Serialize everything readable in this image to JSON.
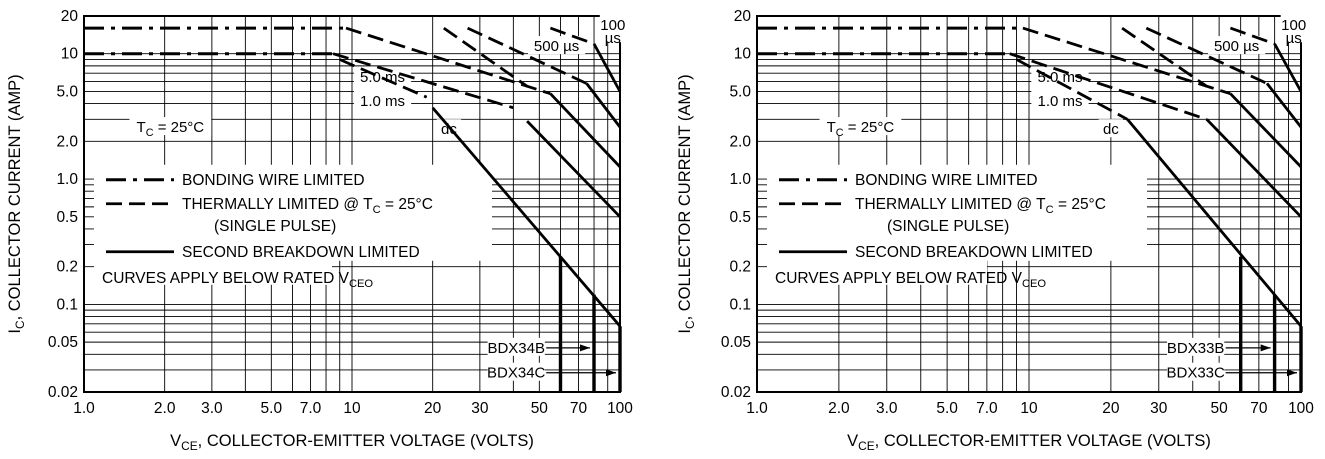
{
  "chart_data": [
    {
      "type": "line",
      "title": "",
      "xlabel": "VCE, COLLECTOR-EMITTER VOLTAGE (VOLTS)",
      "ylabel": "IC, COLLECTOR CURRENT (AMP)",
      "xscale": "log",
      "yscale": "log",
      "xlim": [
        1,
        100
      ],
      "ylim": [
        0.02,
        20
      ],
      "grid": true,
      "x_ticks": [
        1,
        2,
        3,
        5,
        7,
        10,
        20,
        30,
        50,
        70,
        100
      ],
      "x_tick_labels": [
        "1.0",
        "2.0",
        "3.0",
        "5.0",
        "7.0",
        "10",
        "20",
        "30",
        "50",
        "70",
        "100"
      ],
      "y_ticks": [
        0.02,
        0.05,
        0.1,
        0.2,
        0.5,
        1,
        2,
        5,
        10,
        20
      ],
      "y_tick_labels": [
        "0.02",
        "0.05",
        "0.1",
        "0.2",
        "0.5",
        "1.0",
        "2.0",
        "5.0",
        "10",
        "20"
      ],
      "series": [
        {
          "name": "BONDING WIRE LIMITED",
          "style": "dash-dot",
          "x": [
            1,
            9.5
          ],
          "y": [
            16,
            16
          ]
        },
        {
          "name": "BONDING WIRE LIMITED",
          "style": "dash-dot",
          "x": [
            1,
            8.5
          ],
          "y": [
            10,
            10
          ]
        },
        {
          "name": "THERMALLY LIMITED @ TC = 25°C",
          "style": "dash",
          "x": [
            9.5,
            55
          ],
          "y": [
            16,
            4.8
          ]
        },
        {
          "name": "THERMALLY LIMITED @ TC = 25°C",
          "style": "dash",
          "x": [
            22,
            45
          ],
          "y": [
            16,
            5.5
          ]
        },
        {
          "name": "THERMALLY LIMITED @ TC = 25°C",
          "style": "dash",
          "x": [
            8.5,
            40
          ],
          "y": [
            10,
            3.7
          ]
        },
        {
          "name": "THERMALLY LIMITED @ TC = 25°C",
          "style": "dash",
          "x": [
            9,
            19
          ],
          "y": [
            9,
            4.5
          ]
        },
        {
          "name": "THERMALLY LIMITED @ TC = 25°C",
          "style": "dash",
          "x": [
            27,
            75
          ],
          "y": [
            16,
            5.8
          ]
        },
        {
          "name": "THERMALLY LIMITED @ TC = 25°C",
          "style": "dash",
          "x": [
            55,
            80
          ],
          "y": [
            16,
            12
          ]
        },
        {
          "name": "SECOND BREAKDOWN LIMITED",
          "style": "solid",
          "x": [
            20,
            100
          ],
          "y": [
            3.7,
            0.067
          ]
        },
        {
          "name": "SECOND BREAKDOWN LIMITED",
          "style": "solid",
          "x": [
            45,
            100
          ],
          "y": [
            2.9,
            0.5
          ]
        },
        {
          "name": "SECOND BREAKDOWN LIMITED",
          "style": "solid",
          "x": [
            55,
            100
          ],
          "y": [
            4.8,
            1.25
          ]
        },
        {
          "name": "SECOND BREAKDOWN LIMITED",
          "style": "solid",
          "x": [
            75,
            100
          ],
          "y": [
            5.8,
            2.6
          ]
        },
        {
          "name": "SECOND BREAKDOWN LIMITED",
          "style": "solid",
          "x": [
            80,
            100
          ],
          "y": [
            12,
            5
          ]
        },
        {
          "name": "",
          "style": "solid-bold",
          "x": [
            60,
            60
          ],
          "y": [
            0.02,
            0.24
          ]
        },
        {
          "name": "",
          "style": "solid-bold",
          "x": [
            80,
            80
          ],
          "y": [
            0.02,
            0.12
          ]
        },
        {
          "name": "",
          "style": "solid-bold",
          "x": [
            100,
            100
          ],
          "y": [
            0.02,
            0.067
          ]
        }
      ],
      "annotations": [
        {
          "text": "100",
          "x": 94,
          "y": 17
        },
        {
          "text": "µs",
          "x": 94,
          "y": 13.3
        },
        {
          "text": "500 µs",
          "x": 58,
          "y": 11.5
        },
        {
          "text": "5.0 ms",
          "x": 13,
          "y": 6.5
        },
        {
          "text": "1.0 ms",
          "x": 13,
          "y": 4.2
        },
        {
          "text": "dc",
          "x": 23,
          "y": 2.5
        },
        {
          "text": "TC = 25°C",
          "x": 2.1,
          "y": 2.6
        },
        {
          "text": "BDX34B",
          "x": 41,
          "y": 0.045
        },
        {
          "text": "BDX34C",
          "x": 41,
          "y": 0.0285
        }
      ],
      "legend": {
        "placement": "bottom-left",
        "entries": [
          "BONDING WIRE LIMITED",
          "THERMALLY LIMITED @ TC = 25°C",
          "(SINGLE PULSE)",
          "SECOND BREAKDOWN LIMITED",
          "CURVES APPLY BELOW RATED VCEO"
        ]
      }
    },
    {
      "type": "line",
      "title": "",
      "xlabel": "VCE, COLLECTOR-EMITTER VOLTAGE (VOLTS)",
      "ylabel": "IC, COLLECTOR CURRENT (AMP)",
      "xscale": "log",
      "yscale": "log",
      "xlim": [
        1,
        100
      ],
      "ylim": [
        0.02,
        20
      ],
      "grid": true,
      "x_ticks": [
        1,
        2,
        3,
        5,
        7,
        10,
        20,
        30,
        50,
        70,
        100
      ],
      "x_tick_labels": [
        "1.0",
        "2.0",
        "3.0",
        "5.0",
        "7.0",
        "10",
        "20",
        "30",
        "50",
        "70",
        "100"
      ],
      "y_ticks": [
        0.02,
        0.05,
        0.1,
        0.2,
        0.5,
        1,
        2,
        5,
        10,
        20
      ],
      "y_tick_labels": [
        "0.02",
        "0.05",
        "0.1",
        "0.2",
        "0.5",
        "1.0",
        "2.0",
        "5.0",
        "10",
        "20"
      ],
      "series": [
        {
          "name": "BONDING WIRE LIMITED",
          "style": "dash-dot",
          "x": [
            1,
            9.5
          ],
          "y": [
            16,
            16
          ]
        },
        {
          "name": "BONDING WIRE LIMITED",
          "style": "dash-dot",
          "x": [
            1,
            8.5
          ],
          "y": [
            10,
            10
          ]
        },
        {
          "name": "THERMALLY LIMITED @ TC = 25°C",
          "style": "dash",
          "x": [
            9.5,
            55
          ],
          "y": [
            16,
            4.8
          ]
        },
        {
          "name": "THERMALLY LIMITED @ TC = 25°C",
          "style": "dash",
          "x": [
            22,
            45
          ],
          "y": [
            16,
            5.5
          ]
        },
        {
          "name": "THERMALLY LIMITED @ TC = 25°C",
          "style": "dash",
          "x": [
            8.5,
            45
          ],
          "y": [
            10,
            3
          ]
        },
        {
          "name": "THERMALLY LIMITED @ TC = 25°C",
          "style": "dash",
          "x": [
            9,
            23
          ],
          "y": [
            9,
            3
          ]
        },
        {
          "name": "THERMALLY LIMITED @ TC = 25°C",
          "style": "dash",
          "x": [
            27,
            75
          ],
          "y": [
            16,
            5.8
          ]
        },
        {
          "name": "THERMALLY LIMITED @ TC = 25°C",
          "style": "dash",
          "x": [
            55,
            80
          ],
          "y": [
            16,
            12
          ]
        },
        {
          "name": "SECOND BREAKDOWN LIMITED",
          "style": "solid",
          "x": [
            23,
            100
          ],
          "y": [
            3,
            0.067
          ]
        },
        {
          "name": "SECOND BREAKDOWN LIMITED",
          "style": "solid",
          "x": [
            45,
            100
          ],
          "y": [
            3,
            0.5
          ]
        },
        {
          "name": "SECOND BREAKDOWN LIMITED",
          "style": "solid",
          "x": [
            55,
            100
          ],
          "y": [
            4.8,
            1.25
          ]
        },
        {
          "name": "SECOND BREAKDOWN LIMITED",
          "style": "solid",
          "x": [
            75,
            100
          ],
          "y": [
            5.8,
            2.6
          ]
        },
        {
          "name": "SECOND BREAKDOWN LIMITED",
          "style": "solid",
          "x": [
            80,
            100
          ],
          "y": [
            12,
            5
          ]
        },
        {
          "name": "",
          "style": "solid-bold",
          "x": [
            60,
            60
          ],
          "y": [
            0.02,
            0.24
          ]
        },
        {
          "name": "",
          "style": "solid-bold",
          "x": [
            80,
            80
          ],
          "y": [
            0.02,
            0.12
          ]
        },
        {
          "name": "",
          "style": "solid-bold",
          "x": [
            100,
            100
          ],
          "y": [
            0.02,
            0.067
          ]
        }
      ],
      "annotations": [
        {
          "text": "100",
          "x": 94,
          "y": 17
        },
        {
          "text": "µs",
          "x": 94,
          "y": 13.3
        },
        {
          "text": "500 µs",
          "x": 58,
          "y": 11.5
        },
        {
          "text": "5.0 ms",
          "x": 13,
          "y": 6.5
        },
        {
          "text": "1.0 ms",
          "x": 13,
          "y": 4.2
        },
        {
          "text": "dc",
          "x": 20,
          "y": 2.5
        },
        {
          "text": "TC = 25°C",
          "x": 2.4,
          "y": 2.6
        },
        {
          "text": "BDX33B",
          "x": 41,
          "y": 0.045
        },
        {
          "text": "BDX33C",
          "x": 41,
          "y": 0.0285
        }
      ],
      "legend": {
        "placement": "bottom-left",
        "entries": [
          "BONDING WIRE LIMITED",
          "THERMALLY LIMITED @ TC = 25°C",
          "(SINGLE PULSE)",
          "SECOND BREAKDOWN LIMITED",
          "CURVES APPLY BELOW RATED VCEO"
        ]
      }
    }
  ]
}
